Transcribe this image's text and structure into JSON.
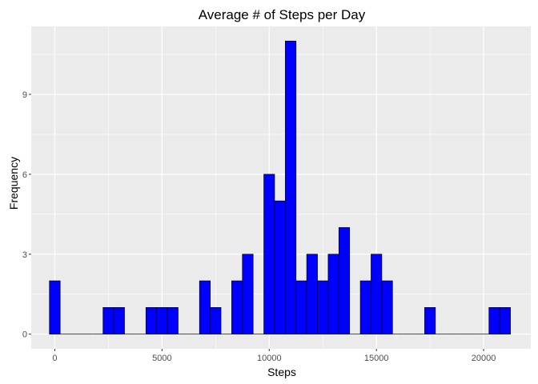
{
  "chart_data": {
    "type": "bar",
    "title": "Average # of Steps per Day",
    "xlabel": "Steps",
    "ylabel": "Frequency",
    "xlim": [
      -1100,
      22200
    ],
    "ylim": [
      -0.55,
      11.55
    ],
    "x_ticks": [
      0,
      5000,
      10000,
      15000,
      20000
    ],
    "x_tick_labels": [
      "0",
      "5000",
      "10000",
      "15000",
      "20000"
    ],
    "y_ticks": [
      0,
      3,
      6,
      9
    ],
    "y_tick_labels": [
      "0",
      "3",
      "6",
      "9"
    ],
    "grid": true,
    "panel_background": "#ebebeb",
    "grid_color": "#ffffff",
    "bar_fill": "#0000ff",
    "bar_outline": "#000000",
    "bin_width": 500,
    "bin_centers": [
      0,
      500,
      1000,
      1500,
      2000,
      2500,
      3000,
      3500,
      4000,
      4500,
      5000,
      5500,
      6000,
      6500,
      7000,
      7500,
      8000,
      8500,
      9000,
      9500,
      10000,
      10500,
      11000,
      11500,
      12000,
      12500,
      13000,
      13500,
      14000,
      14500,
      15000,
      15500,
      16000,
      16500,
      17000,
      17500,
      18000,
      18500,
      19000,
      19500,
      20000,
      20500,
      21000
    ],
    "values": [
      2,
      0,
      0,
      0,
      0,
      1,
      1,
      0,
      0,
      1,
      1,
      1,
      0,
      0,
      2,
      1,
      0,
      2,
      3,
      0,
      6,
      5,
      11,
      2,
      3,
      2,
      3,
      4,
      0,
      2,
      3,
      2,
      0,
      0,
      0,
      1,
      0,
      0,
      0,
      0,
      0,
      1,
      1
    ]
  }
}
